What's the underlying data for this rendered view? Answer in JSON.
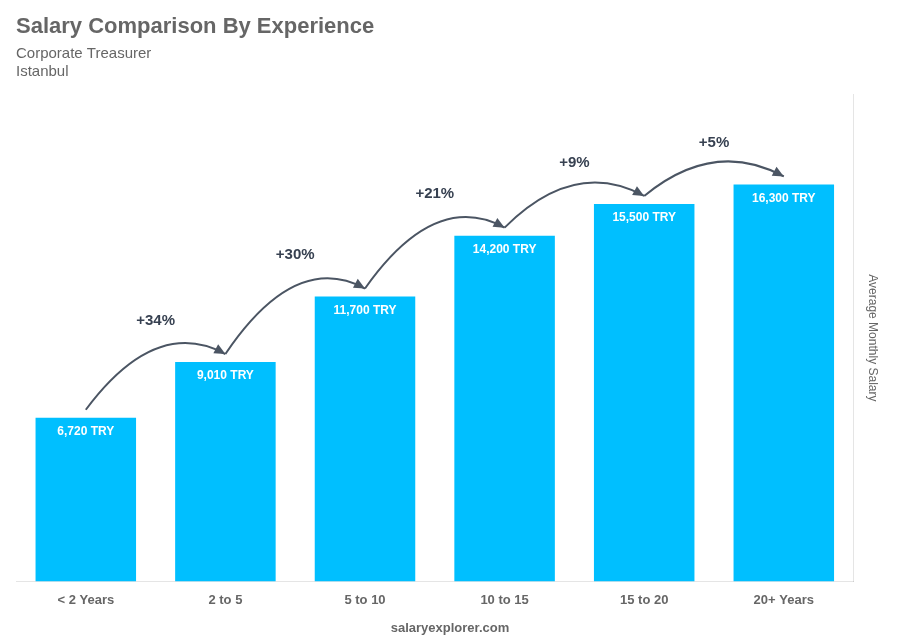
{
  "chart_data": {
    "type": "bar",
    "title": "Salary Comparison By Experience",
    "subtitle": [
      "Corporate Treasurer",
      "Istanbul"
    ],
    "watermark": "salaryexplorer.com",
    "ylabel": "Average Monthly Salary",
    "categories": [
      "< 2 Years",
      "2 to 5",
      "5 to 10",
      "10 to 15",
      "15 to 20",
      "20+ Years"
    ],
    "values": [
      6720,
      9010,
      11700,
      14200,
      15500,
      16300
    ],
    "value_labels": [
      "6,720 TRY",
      "9,010 TRY",
      "11,700 TRY",
      "14,200 TRY",
      "15,500 TRY",
      "16,300 TRY"
    ],
    "data_labels": true,
    "annotations": [
      "+34%",
      "+30%",
      "+21%",
      "+9%",
      "+5%"
    ],
    "color": "#00BFFF",
    "ylim": [
      0,
      20000
    ],
    "grid": false,
    "tick_labels": "x"
  }
}
